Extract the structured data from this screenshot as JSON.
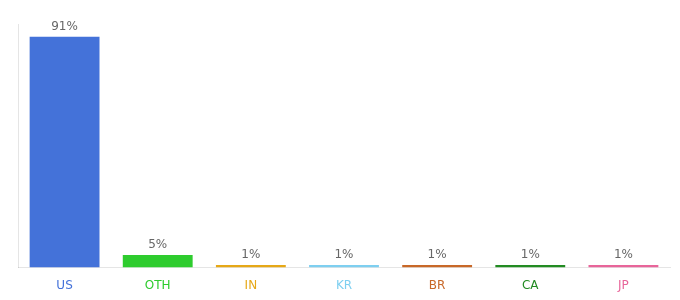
{
  "chart_data": {
    "type": "bar",
    "categories": [
      "US",
      "OTH",
      "IN",
      "KR",
      "BR",
      "CA",
      "JP"
    ],
    "values": [
      91,
      5,
      1,
      1,
      1,
      1,
      1
    ],
    "value_labels": [
      "91%",
      "5%",
      "1%",
      "1%",
      "1%",
      "1%",
      "1%"
    ],
    "data_labels": true,
    "colors": [
      "#4472d9",
      "#2ecc2e",
      "#e6a817",
      "#7ecff0",
      "#c86828",
      "#228b22",
      "#e8659a"
    ],
    "ylim": [
      0,
      96
    ],
    "grid": false,
    "tick_labels": "x"
  }
}
